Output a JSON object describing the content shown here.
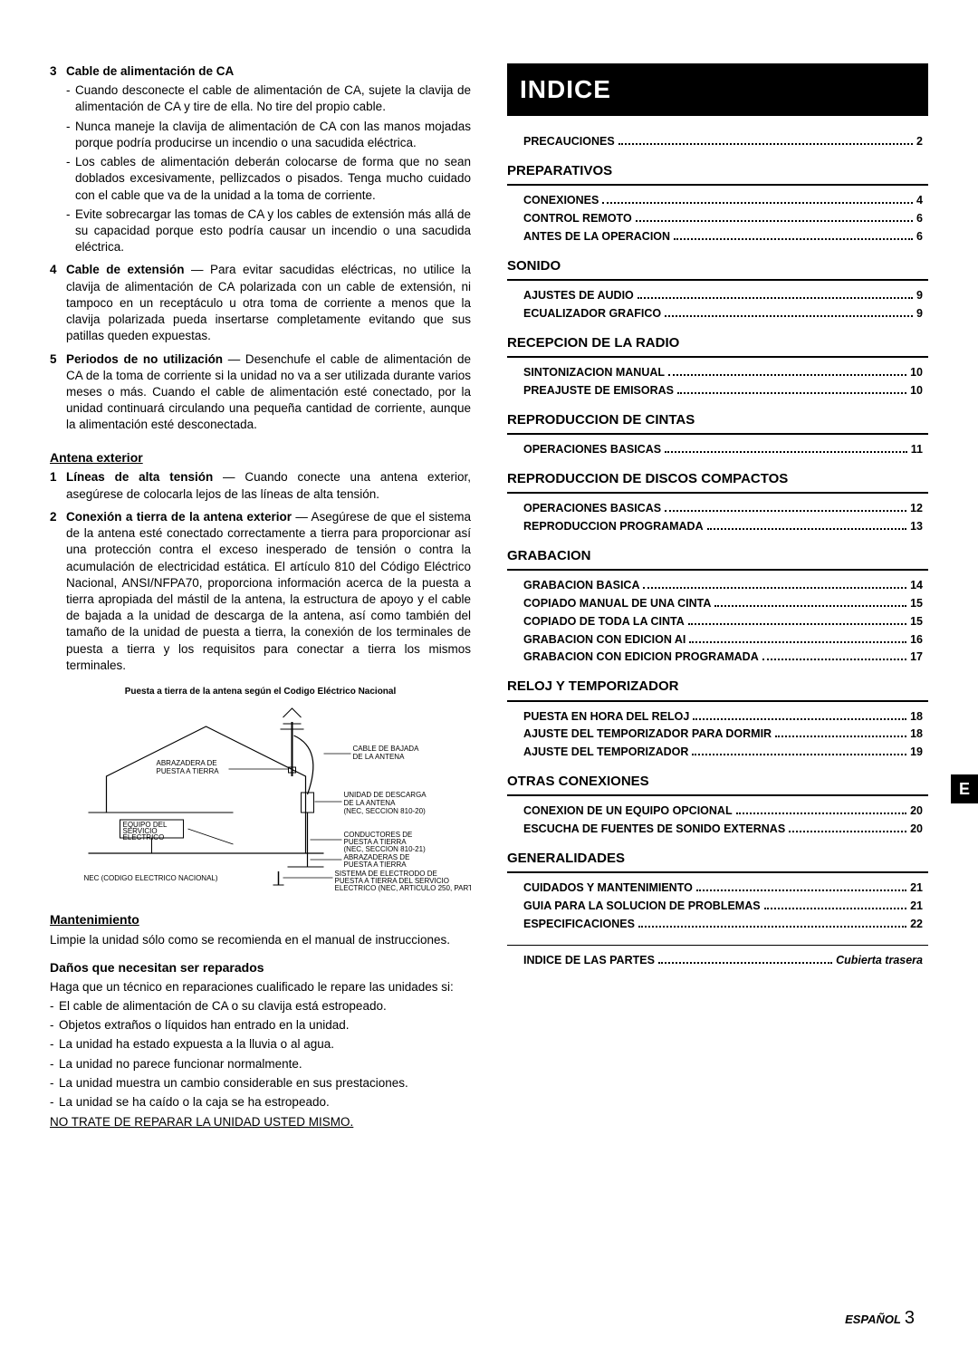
{
  "left": {
    "item3": {
      "num": "3",
      "title": "Cable de alimentación de CA",
      "bullets": [
        "Cuando desconecte el cable de alimentación de CA, sujete la clavija de alimentación de CA y tire de ella. No tire del propio cable.",
        "Nunca maneje la clavija de alimentación de CA con las manos mojadas porque podría producirse un incendio o una sacudida eléctrica.",
        "Los cables de alimentación deberán colocarse de forma que no sean doblados excesivamente, pellizcados o pisados. Tenga mucho cuidado con el cable que va de la unidad a la toma de corriente.",
        "Evite sobrecargar las tomas de CA y los cables de extensión más allá de su capacidad porque esto podría causar un incendio o una sacudida eléctrica."
      ]
    },
    "item4": {
      "num": "4",
      "title": "Cable de extensión",
      "text": " — Para evitar sacudidas eléctricas, no utilice la clavija de alimentación de CA polarizada con un cable de extensión, ni tampoco en un receptáculo u otra toma de corriente a menos que la clavija polarizada pueda insertarse completamente evitando que sus patillas queden expuestas."
    },
    "item5": {
      "num": "5",
      "title": "Periodos de no utilización",
      "text": " — Desenchufe el cable de alimentación de CA de la toma de corriente si la unidad no va a ser utilizada durante varios meses o más. Cuando el cable de alimentación esté conectado, por la unidad continuará circulando una pequeña cantidad de corriente, aunque la alimentación esté desconectada."
    },
    "antena": {
      "heading": "Antena exterior",
      "i1num": "1",
      "i1title": "Líneas de alta tensión",
      "i1text": " — Cuando conecte una antena exterior, asegúrese de colocarla lejos de las líneas de alta tensión.",
      "i2num": "2",
      "i2title": "Conexión a tierra de la antena exterior",
      "i2text": " — Asegúrese de que el sistema de la antena esté conectado correctamente a tierra para proporcionar así una protección contra el exceso inesperado de tensión o contra la acumulación de electricidad estática. El artículo 810 del Código Eléctrico Nacional, ANSI/NFPA70, proporciona información acerca de la puesta a tierra apropiada del mástil de la antena, la estructura de apoyo y el cable de bajada a la unidad de descarga de la antena, así como también del tamaño de la unidad de puesta a tierra, la conexión de los terminales de puesta a tierra y los requisitos para conectar a tierra los mismos terminales."
    },
    "diagram": {
      "caption": "Puesta a tierra de la antena según el Codigo Eléctrico Nacional",
      "l_cable": "CABLE DE BAJADA\nDE LA ANTENA",
      "l_clamp": "ABRAZADERA DE\nPUESTA A TIERRA",
      "l_unit": "UNIDAD DE DESCARGA\nDE LA ANTENA\n(NEC, SECCION 810-20)",
      "l_equip": "EQUIPO DEL\nSERVICIO\nELECTRICO",
      "l_cond": "CONDUCTORES DE\nPUESTA A TIERRA\n(NEC, SECCION 810-21)",
      "l_clamps2": "ABRAZADERAS DE\nPUESTA A TIERRA",
      "l_elec": "SISTEMA DE ELECTRODO DE\nPUESTA A TIERRA DEL SERVICIO\nELECTRICO (NEC, ARTICULO 250, PARTE H)",
      "l_nec": "NEC (CODIGO ELECTRICO NACIONAL)"
    },
    "mantenimiento": {
      "heading": "Mantenimiento",
      "text": "Limpie la unidad sólo como se recomienda en el manual de instrucciones."
    },
    "danos": {
      "heading": "Daños que necesitan ser reparados",
      "intro": "Haga que un técnico en reparaciones cualificado le repare las unidades si:",
      "items": [
        "El cable de alimentación de CA o su clavija está estropeado.",
        "Objetos extraños o líquidos han entrado en la unidad.",
        "La unidad ha estado expuesta a la lluvia o al agua.",
        "La unidad no parece funcionar normalmente.",
        "La unidad muestra un cambio considerable en sus prestaciones.",
        "La unidad se ha caído o la caja se ha estropeado."
      ],
      "warn": "NO TRATE DE REPARAR LA UNIDAD USTED MISMO."
    }
  },
  "right": {
    "banner": "INDICE",
    "top": {
      "label": "PRECAUCIONES",
      "pg": "2"
    },
    "sections": [
      {
        "title": "PREPARATIVOS",
        "items": [
          {
            "label": "CONEXIONES",
            "pg": "4"
          },
          {
            "label": "CONTROL REMOTO",
            "pg": "6"
          },
          {
            "label": "ANTES DE LA OPERACION",
            "pg": "6"
          }
        ]
      },
      {
        "title": "SONIDO",
        "items": [
          {
            "label": "AJUSTES DE AUDIO",
            "pg": "9"
          },
          {
            "label": "ECUALIZADOR GRAFICO",
            "pg": "9"
          }
        ]
      },
      {
        "title": "RECEPCION DE LA RADIO",
        "items": [
          {
            "label": "SINTONIZACION MANUAL",
            "pg": "10"
          },
          {
            "label": "PREAJUSTE DE EMISORAS",
            "pg": "10"
          }
        ]
      },
      {
        "title": "REPRODUCCION DE CINTAS",
        "items": [
          {
            "label": "OPERACIONES BASICAS",
            "pg": "11"
          }
        ]
      },
      {
        "title": "REPRODUCCION DE DISCOS COMPACTOS",
        "items": [
          {
            "label": "OPERACIONES BASICAS",
            "pg": "12"
          },
          {
            "label": "REPRODUCCION PROGRAMADA",
            "pg": "13"
          }
        ]
      },
      {
        "title": "GRABACION",
        "items": [
          {
            "label": "GRABACION BASICA",
            "pg": "14"
          },
          {
            "label": "COPIADO MANUAL DE UNA CINTA",
            "pg": "15"
          },
          {
            "label": "COPIADO DE TODA LA CINTA",
            "pg": "15"
          },
          {
            "label": "GRABACION CON EDICION AI",
            "pg": "16"
          },
          {
            "label": "GRABACION CON EDICION PROGRAMADA",
            "pg": "17"
          }
        ]
      },
      {
        "title": "RELOJ Y TEMPORIZADOR",
        "items": [
          {
            "label": "PUESTA EN HORA DEL RELOJ",
            "pg": "18"
          },
          {
            "label": "AJUSTE DEL TEMPORIZADOR PARA DORMIR",
            "pg": "18"
          },
          {
            "label": "AJUSTE DEL TEMPORIZADOR",
            "pg": "19"
          }
        ]
      },
      {
        "title": "OTRAS CONEXIONES",
        "items": [
          {
            "label": "CONEXION DE UN EQUIPO OPCIONAL",
            "pg": "20"
          },
          {
            "label": "ESCUCHA DE FUENTES DE SONIDO EXTERNAS",
            "pg": "20"
          }
        ]
      },
      {
        "title": "GENERALIDADES",
        "items": [
          {
            "label": "CUIDADOS Y MANTENIMIENTO",
            "pg": "21"
          },
          {
            "label": "GUIA PARA LA SOLUCION DE PROBLEMAS",
            "pg": "21"
          },
          {
            "label": "ESPECIFICACIONES",
            "pg": "22"
          }
        ]
      }
    ],
    "final": {
      "label": "INDICE DE LAS PARTES",
      "pg": "Cubierta trasera"
    }
  },
  "sideTab": "E",
  "footer": {
    "lang": "ESPAÑOL",
    "page": "3"
  }
}
